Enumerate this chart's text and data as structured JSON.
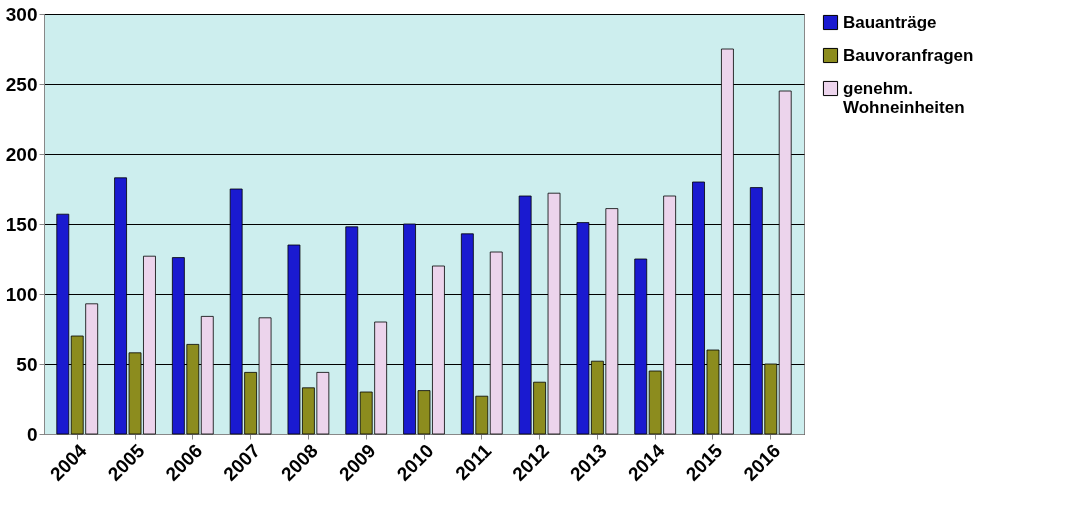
{
  "chart_data": {
    "type": "bar",
    "categories": [
      "2004",
      "2005",
      "2006",
      "2007",
      "2008",
      "2009",
      "2010",
      "2011",
      "2012",
      "2013",
      "2014",
      "2015",
      "2016"
    ],
    "series": [
      {
        "name": "Bauanträge",
        "color": "#1a1ad0",
        "values": [
          157,
          183,
          126,
          175,
          135,
          148,
          150,
          143,
          170,
          151,
          125,
          180,
          176
        ]
      },
      {
        "name": "Bauvoranfragen",
        "color": "#8c8c1e",
        "values": [
          70,
          58,
          64,
          44,
          33,
          30,
          31,
          27,
          37,
          52,
          45,
          60,
          50
        ]
      },
      {
        "name": "genehm.\nWohneinheiten",
        "color": "#ecd4ec",
        "values": [
          93,
          127,
          84,
          83,
          44,
          80,
          120,
          130,
          172,
          161,
          170,
          275,
          245
        ]
      }
    ],
    "ylim": [
      0,
      300
    ],
    "yticks": [
      0,
      50,
      100,
      150,
      200,
      250,
      300
    ],
    "grid": "y",
    "legend": "right"
  }
}
